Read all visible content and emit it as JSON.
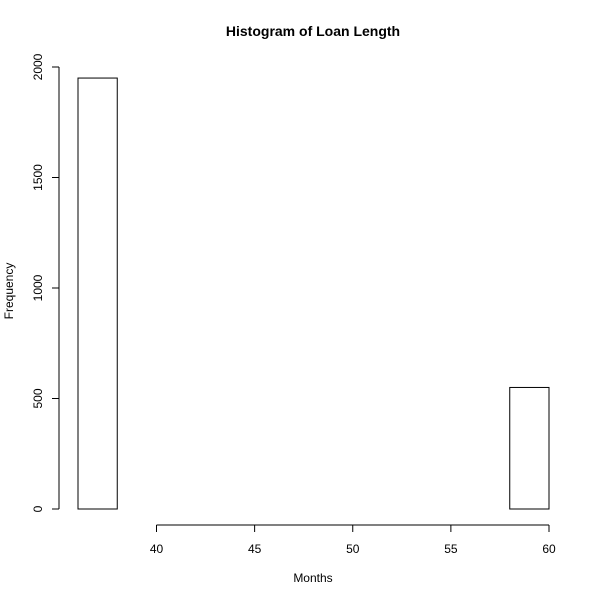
{
  "chart_data": {
    "type": "bar",
    "title": "Histogram of Loan Length",
    "xlabel": "Months",
    "ylabel": "Frequency",
    "bins": [
      {
        "x0": 36,
        "x1": 38,
        "count": 1950
      },
      {
        "x0": 38,
        "x1": 40,
        "count": 0
      },
      {
        "x0": 40,
        "x1": 42,
        "count": 0
      },
      {
        "x0": 42,
        "x1": 44,
        "count": 0
      },
      {
        "x0": 44,
        "x1": 46,
        "count": 0
      },
      {
        "x0": 46,
        "x1": 48,
        "count": 0
      },
      {
        "x0": 48,
        "x1": 50,
        "count": 0
      },
      {
        "x0": 50,
        "x1": 52,
        "count": 0
      },
      {
        "x0": 52,
        "x1": 54,
        "count": 0
      },
      {
        "x0": 54,
        "x1": 56,
        "count": 0
      },
      {
        "x0": 56,
        "x1": 58,
        "count": 0
      },
      {
        "x0": 58,
        "x1": 60,
        "count": 550
      }
    ],
    "xlim": [
      36,
      60
    ],
    "ylim": [
      0,
      2000
    ],
    "x_ticks": [
      40,
      45,
      50,
      55,
      60
    ],
    "y_ticks": [
      0,
      500,
      1000,
      1500,
      2000
    ],
    "bar_fill": "#ffffff",
    "bar_stroke": "#000000",
    "grid": false,
    "legend": "none"
  }
}
